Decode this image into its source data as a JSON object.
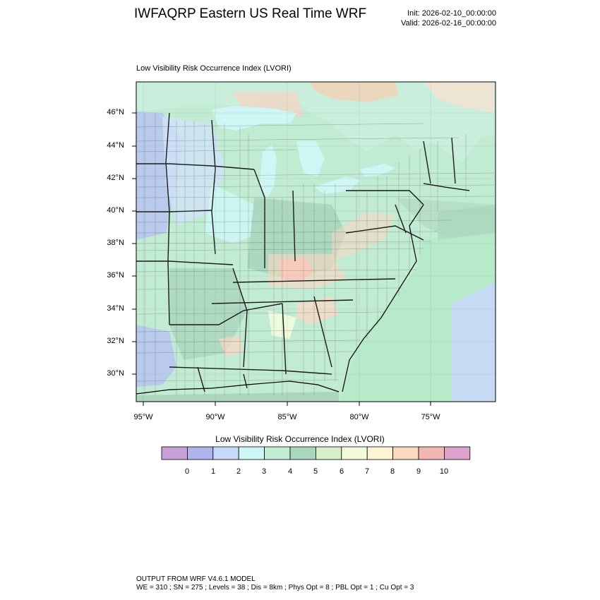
{
  "header": {
    "title": "IWFAQRP Eastern US Real Time WRF",
    "init": "Init: 2026-02-10_00:00:00",
    "valid": "Valid: 2026-02-16_00:00:00"
  },
  "map": {
    "title": "Low Visibility Risk Occurrence Index   (LVORI)",
    "lat_labels": [
      "46°N",
      "44°N",
      "42°N",
      "40°N",
      "38°N",
      "36°N",
      "34°N",
      "32°N",
      "30°N"
    ],
    "lon_labels": [
      "95°W",
      "90°W",
      "85°W",
      "80°W",
      "75°W"
    ],
    "ocean_color": "#b7eac9",
    "land_base_color": "#c2ebd4"
  },
  "colorbar": {
    "title": "Low Visibility Risk Occurrence Index  (LVORI)",
    "labels": [
      "0",
      "1",
      "2",
      "3",
      "4",
      "5",
      "6",
      "7",
      "8",
      "9",
      "10"
    ],
    "colors": [
      "#c8a0d8",
      "#b0b4ec",
      "#c8d8f8",
      "#cdf6f4",
      "#c2ebd4",
      "#a9d6bc",
      "#d6efc8",
      "#f2fcdc",
      "#fff4d4",
      "#fcd7c2",
      "#f2b7b5",
      "#dda3cc"
    ]
  },
  "footer": {
    "line1": "OUTPUT FROM WRF V4.6.1 MODEL",
    "line2": "WE = 310 ; SN = 275 ; Levels = 38 ; Dis = 8km ; Phys Opt = 8 ; PBL Opt = 1 ; Cu Opt = 3"
  }
}
